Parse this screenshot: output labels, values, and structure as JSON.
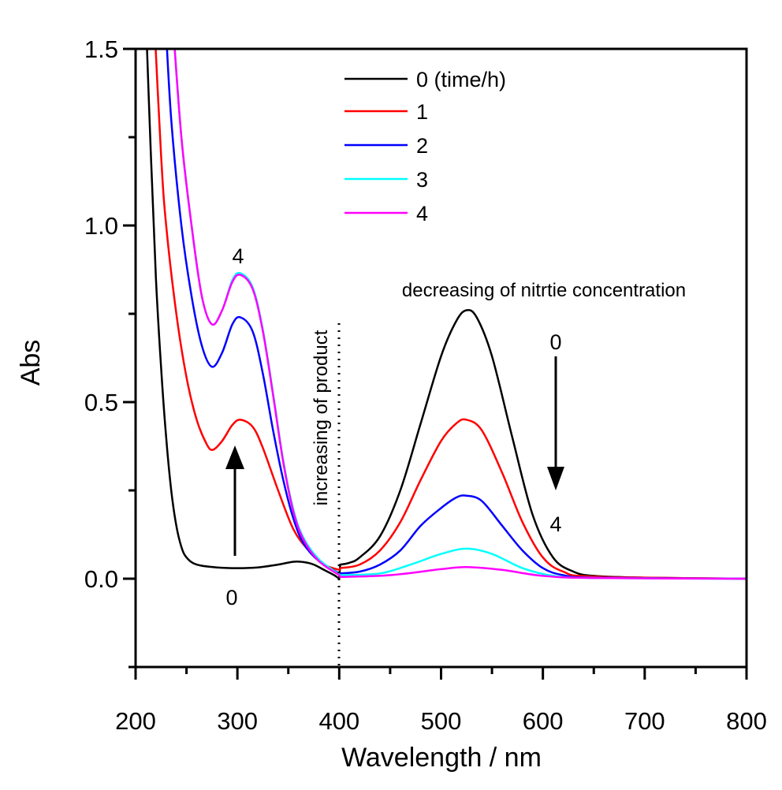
{
  "chart_data": {
    "type": "line",
    "title": "",
    "xlabel": "Wavelength / nm",
    "ylabel": "Abs",
    "xlim": [
      200,
      800
    ],
    "ylim": [
      -0.25,
      1.5
    ],
    "xticks": [
      "200",
      "300",
      "400",
      "500",
      "600",
      "700",
      "800"
    ],
    "yticks": [
      "0.0",
      "0.5",
      "1.0",
      "1.5"
    ],
    "grid": false,
    "legend_position": "top-center",
    "series": [
      {
        "name": "0 (time/h)",
        "color": "#000000",
        "points": [
          [
            210,
            1.6
          ],
          [
            215,
            1.2
          ],
          [
            220,
            0.85
          ],
          [
            225,
            0.6
          ],
          [
            230,
            0.4
          ],
          [
            235,
            0.25
          ],
          [
            240,
            0.15
          ],
          [
            245,
            0.09
          ],
          [
            250,
            0.06
          ],
          [
            260,
            0.04
          ],
          [
            280,
            0.032
          ],
          [
            300,
            0.03
          ],
          [
            320,
            0.032
          ],
          [
            340,
            0.04
          ],
          [
            355,
            0.048
          ],
          [
            365,
            0.047
          ],
          [
            375,
            0.04
          ],
          [
            385,
            0.025
          ],
          [
            395,
            0.01
          ],
          [
            400,
            0.0
          ],
          [
            401,
            0.04
          ],
          [
            410,
            0.045
          ],
          [
            420,
            0.06
          ],
          [
            440,
            0.12
          ],
          [
            460,
            0.25
          ],
          [
            480,
            0.44
          ],
          [
            500,
            0.63
          ],
          [
            515,
            0.73
          ],
          [
            525,
            0.76
          ],
          [
            535,
            0.74
          ],
          [
            550,
            0.63
          ],
          [
            570,
            0.4
          ],
          [
            590,
            0.18
          ],
          [
            610,
            0.06
          ],
          [
            630,
            0.02
          ],
          [
            650,
            0.008
          ],
          [
            700,
            0.003
          ],
          [
            800,
            0.0
          ]
        ]
      },
      {
        "name": "1",
        "color": "#ff0000",
        "points": [
          [
            218,
            1.6
          ],
          [
            225,
            1.2
          ],
          [
            230,
            1.0
          ],
          [
            240,
            0.75
          ],
          [
            250,
            0.57
          ],
          [
            260,
            0.45
          ],
          [
            270,
            0.38
          ],
          [
            276,
            0.365
          ],
          [
            285,
            0.39
          ],
          [
            295,
            0.435
          ],
          [
            303,
            0.45
          ],
          [
            315,
            0.43
          ],
          [
            325,
            0.37
          ],
          [
            340,
            0.25
          ],
          [
            355,
            0.14
          ],
          [
            370,
            0.08
          ],
          [
            385,
            0.04
          ],
          [
            400,
            0.025
          ],
          [
            401,
            0.03
          ],
          [
            420,
            0.04
          ],
          [
            440,
            0.08
          ],
          [
            460,
            0.16
          ],
          [
            480,
            0.28
          ],
          [
            500,
            0.39
          ],
          [
            515,
            0.44
          ],
          [
            525,
            0.45
          ],
          [
            540,
            0.42
          ],
          [
            560,
            0.3
          ],
          [
            580,
            0.16
          ],
          [
            600,
            0.06
          ],
          [
            620,
            0.02
          ],
          [
            650,
            0.006
          ],
          [
            800,
            0.0
          ]
        ]
      },
      {
        "name": "2",
        "color": "#0000ff",
        "points": [
          [
            229,
            1.6
          ],
          [
            235,
            1.3
          ],
          [
            245,
            1.0
          ],
          [
            255,
            0.8
          ],
          [
            265,
            0.66
          ],
          [
            275,
            0.6
          ],
          [
            285,
            0.64
          ],
          [
            295,
            0.72
          ],
          [
            303,
            0.74
          ],
          [
            315,
            0.7
          ],
          [
            325,
            0.58
          ],
          [
            335,
            0.42
          ],
          [
            345,
            0.28
          ],
          [
            355,
            0.17
          ],
          [
            365,
            0.1
          ],
          [
            380,
            0.05
          ],
          [
            400,
            0.015
          ],
          [
            401,
            0.015
          ],
          [
            420,
            0.02
          ],
          [
            440,
            0.04
          ],
          [
            460,
            0.08
          ],
          [
            480,
            0.15
          ],
          [
            500,
            0.2
          ],
          [
            515,
            0.23
          ],
          [
            525,
            0.235
          ],
          [
            540,
            0.22
          ],
          [
            560,
            0.15
          ],
          [
            580,
            0.08
          ],
          [
            600,
            0.03
          ],
          [
            620,
            0.01
          ],
          [
            650,
            0.003
          ],
          [
            800,
            0.0
          ]
        ]
      },
      {
        "name": "3",
        "color": "#00ffff",
        "points": [
          [
            236,
            1.6
          ],
          [
            245,
            1.25
          ],
          [
            255,
            1.0
          ],
          [
            265,
            0.8
          ],
          [
            275,
            0.72
          ],
          [
            285,
            0.76
          ],
          [
            295,
            0.845
          ],
          [
            303,
            0.865
          ],
          [
            315,
            0.825
          ],
          [
            325,
            0.705
          ],
          [
            335,
            0.525
          ],
          [
            345,
            0.335
          ],
          [
            355,
            0.195
          ],
          [
            365,
            0.115
          ],
          [
            380,
            0.055
          ],
          [
            400,
            0.012
          ],
          [
            401,
            0.01
          ],
          [
            440,
            0.015
          ],
          [
            470,
            0.04
          ],
          [
            500,
            0.07
          ],
          [
            525,
            0.085
          ],
          [
            550,
            0.07
          ],
          [
            580,
            0.03
          ],
          [
            610,
            0.008
          ],
          [
            650,
            0.002
          ],
          [
            800,
            0.0
          ]
        ]
      },
      {
        "name": "4",
        "color": "#ff00ff",
        "points": [
          [
            236,
            1.6
          ],
          [
            245,
            1.25
          ],
          [
            255,
            1.0
          ],
          [
            265,
            0.8
          ],
          [
            275,
            0.72
          ],
          [
            285,
            0.76
          ],
          [
            295,
            0.84
          ],
          [
            303,
            0.86
          ],
          [
            315,
            0.82
          ],
          [
            325,
            0.7
          ],
          [
            335,
            0.52
          ],
          [
            345,
            0.33
          ],
          [
            355,
            0.19
          ],
          [
            365,
            0.11
          ],
          [
            380,
            0.05
          ],
          [
            400,
            0.01
          ],
          [
            401,
            0.005
          ],
          [
            450,
            0.01
          ],
          [
            500,
            0.027
          ],
          [
            525,
            0.033
          ],
          [
            560,
            0.025
          ],
          [
            600,
            0.008
          ],
          [
            650,
            0.002
          ],
          [
            800,
            0.0
          ]
        ]
      }
    ],
    "annotations": {
      "left_top_label": "4",
      "left_bottom_label": "0",
      "vertical_text": "increasing of product",
      "right_text": "decreasing of nitrtie concentration",
      "right_top_label": "0",
      "right_bottom_label": "4"
    }
  }
}
